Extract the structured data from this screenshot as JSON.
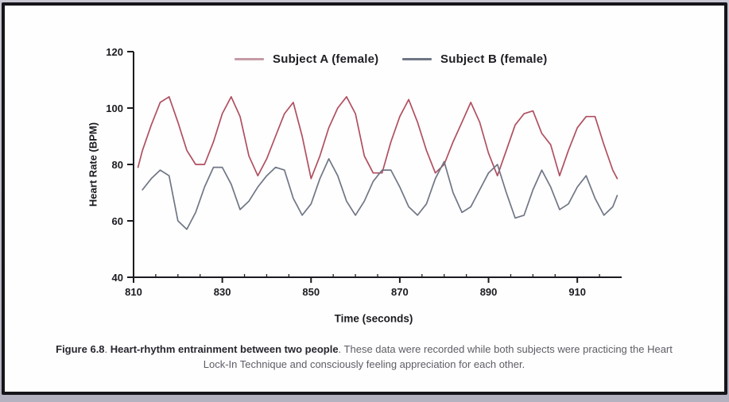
{
  "frame": {
    "outer_bg_top": "#cac8d3",
    "outer_bg_bottom": "#b4b2c0",
    "card_bg": "#fefefe",
    "card_border": "#15151a"
  },
  "chart": {
    "legend": {
      "a_swatch_color": "#c59ba5",
      "b_swatch_color": "#6f7685"
    },
    "y_axis": {
      "ticks": [
        40,
        60,
        80,
        100,
        120
      ]
    },
    "x_axis": {
      "ticks": [
        810,
        830,
        850,
        870,
        890,
        910
      ],
      "minor_step": 5
    },
    "axis_color": "#1b1b20"
  },
  "chart_data": {
    "type": "line",
    "title": "",
    "xlabel": "Time (seconds)",
    "ylabel": "Heart Rate (BPM)",
    "xlim": [
      810,
      920
    ],
    "ylim": [
      40,
      120
    ],
    "grid": false,
    "legend_position": "top",
    "series": [
      {
        "name": "Subject A (female)",
        "color": "#b04f60",
        "x": [
          811,
          812,
          814,
          816,
          818,
          820,
          822,
          824,
          826,
          828,
          830,
          832,
          834,
          836,
          838,
          840,
          842,
          844,
          846,
          848,
          850,
          852,
          854,
          856,
          858,
          860,
          862,
          864,
          866,
          868,
          870,
          872,
          874,
          876,
          878,
          880,
          882,
          884,
          886,
          888,
          890,
          892,
          894,
          896,
          898,
          900,
          902,
          904,
          906,
          908,
          910,
          912,
          914,
          916,
          918,
          919
        ],
        "values": [
          79,
          85,
          94,
          102,
          104,
          95,
          85,
          80,
          80,
          88,
          98,
          104,
          97,
          83,
          76,
          82,
          90,
          98,
          102,
          90,
          75,
          83,
          93,
          100,
          104,
          98,
          83,
          77,
          77,
          88,
          97,
          103,
          95,
          85,
          77,
          80,
          88,
          95,
          102,
          95,
          84,
          76,
          85,
          94,
          98,
          99,
          91,
          87,
          76,
          85,
          93,
          97,
          97,
          87,
          78,
          75
        ]
      },
      {
        "name": "Subject B (female)",
        "color": "#6f7685",
        "x": [
          812,
          814,
          816,
          818,
          820,
          822,
          824,
          826,
          828,
          830,
          832,
          834,
          836,
          838,
          840,
          842,
          844,
          846,
          848,
          850,
          852,
          854,
          856,
          858,
          860,
          862,
          864,
          866,
          868,
          870,
          872,
          874,
          876,
          878,
          880,
          882,
          884,
          886,
          888,
          890,
          892,
          894,
          896,
          898,
          900,
          902,
          904,
          906,
          908,
          910,
          912,
          914,
          916,
          918,
          919
        ],
        "values": [
          71,
          75,
          78,
          76,
          60,
          57,
          63,
          72,
          79,
          79,
          73,
          64,
          67,
          72,
          76,
          79,
          78,
          68,
          62,
          66,
          75,
          82,
          76,
          67,
          62,
          67,
          74,
          78,
          78,
          72,
          65,
          62,
          66,
          75,
          81,
          70,
          63,
          65,
          71,
          77,
          80,
          70,
          61,
          62,
          71,
          78,
          72,
          64,
          66,
          72,
          76,
          68,
          62,
          65,
          69
        ]
      }
    ]
  },
  "caption": {
    "figure_label": "Figure 6.8",
    "sep1": ". ",
    "highlight": "Heart-rhythm entrainment between two people",
    "sep2": ". ",
    "body": "These data were recorded while both subjects were practicing the Heart Lock-In Technique and consciously feeling appreciation for each other."
  }
}
